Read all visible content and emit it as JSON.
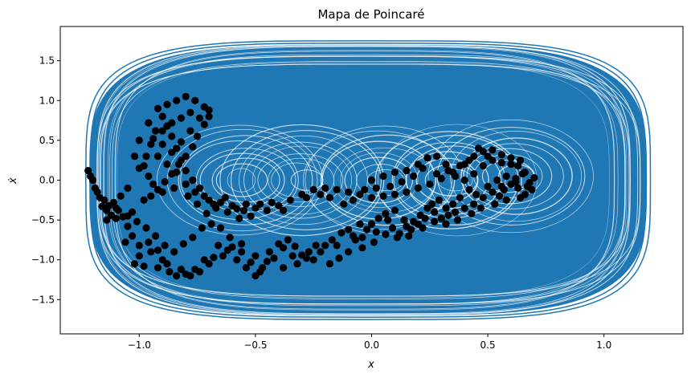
{
  "chart_data": {
    "type": "scatter",
    "title": "Mapa de Poincaré",
    "xlabel": "x",
    "ylabel": "ẋ",
    "xlim": [
      -1.34,
      1.34
    ],
    "ylim": [
      -1.93,
      1.93
    ],
    "xticks": [
      -1.0,
      -0.5,
      0.0,
      0.5,
      1.0
    ],
    "xtick_labels": [
      "−1.0",
      "−0.5",
      "0.0",
      "0.5",
      "1.0"
    ],
    "yticks": [
      1.5,
      1.0,
      0.5,
      0.0,
      -0.5,
      -1.0,
      -1.5
    ],
    "ytick_labels": [
      "1.5",
      "1.0",
      "0.5",
      "0.0",
      "−0.5",
      "−1.0",
      "−1.5"
    ],
    "grid": false,
    "colors": {
      "trajectory": "#1f77b4",
      "poincare_points": "#000000",
      "background": "#ffffff"
    },
    "series": [
      {
        "kind": "line",
        "description_values": "dense phase-space trajectory filling an oval region",
        "x_range": [
          -1.25,
          1.22
        ],
        "y_range": [
          -1.75,
          1.75
        ]
      },
      {
        "kind": "scatter",
        "points": [
          [
            -1.22,
            0.12
          ],
          [
            -1.21,
            0.05
          ],
          [
            -1.2,
            0.0
          ],
          [
            -1.19,
            -0.1
          ],
          [
            -1.17,
            -0.22
          ],
          [
            -1.16,
            -0.33
          ],
          [
            -1.14,
            -0.38
          ],
          [
            -1.12,
            -0.44
          ],
          [
            -1.1,
            -0.48
          ],
          [
            -1.07,
            -0.46
          ],
          [
            -1.05,
            -0.58
          ],
          [
            -1.03,
            -0.7
          ],
          [
            -1.02,
            -1.05
          ],
          [
            -1.0,
            -0.82
          ],
          [
            -0.98,
            -1.08
          ],
          [
            -0.95,
            -0.9
          ],
          [
            -0.92,
            -0.88
          ],
          [
            -0.9,
            -1.0
          ],
          [
            -0.87,
            -1.15
          ],
          [
            -0.84,
            -1.2
          ],
          [
            -0.8,
            -1.18
          ],
          [
            -0.76,
            -1.12
          ],
          [
            -0.72,
            -1.0
          ],
          [
            -0.68,
            -0.97
          ],
          [
            -0.64,
            -0.95
          ],
          [
            -0.6,
            -0.84
          ],
          [
            -0.56,
            -0.9
          ],
          [
            -0.52,
            -1.03
          ],
          [
            -0.5,
            -1.2
          ],
          [
            -0.47,
            -1.1
          ],
          [
            -0.44,
            -0.9
          ],
          [
            -0.4,
            -0.8
          ],
          [
            -0.36,
            -0.75
          ],
          [
            -0.33,
            -0.83
          ],
          [
            -0.3,
            -0.94
          ],
          [
            -0.27,
            -0.9
          ],
          [
            -0.24,
            -0.82
          ],
          [
            -0.2,
            -0.82
          ],
          [
            -0.17,
            -0.75
          ],
          [
            -0.13,
            -0.66
          ],
          [
            -0.1,
            -0.62
          ],
          [
            -0.07,
            -0.75
          ],
          [
            -0.04,
            -0.72
          ],
          [
            -0.02,
            -0.62
          ],
          [
            0.0,
            -0.55
          ],
          [
            0.03,
            -0.48
          ],
          [
            0.06,
            -0.42
          ],
          [
            0.09,
            -0.6
          ],
          [
            0.12,
            -0.67
          ],
          [
            0.15,
            -0.58
          ],
          [
            0.18,
            -0.52
          ],
          [
            0.21,
            -0.44
          ],
          [
            0.24,
            -0.35
          ],
          [
            0.27,
            -0.4
          ],
          [
            0.3,
            -0.48
          ],
          [
            0.33,
            -0.44
          ],
          [
            0.36,
            -0.4
          ],
          [
            0.4,
            -0.35
          ],
          [
            0.44,
            -0.3
          ],
          [
            0.48,
            -0.22
          ],
          [
            0.52,
            -0.15
          ],
          [
            0.56,
            -0.08
          ],
          [
            0.6,
            -0.05
          ],
          [
            0.63,
            -0.1
          ],
          [
            0.66,
            -0.18
          ],
          [
            0.68,
            -0.03
          ],
          [
            0.7,
            0.03
          ],
          [
            0.66,
            0.1
          ],
          [
            0.63,
            0.18
          ],
          [
            0.6,
            0.28
          ],
          [
            0.56,
            0.32
          ],
          [
            0.52,
            0.38
          ],
          [
            0.48,
            0.36
          ],
          [
            0.44,
            0.3
          ],
          [
            0.4,
            0.2
          ],
          [
            0.35,
            0.1
          ],
          [
            0.3,
            0.02
          ],
          [
            0.25,
            -0.05
          ],
          [
            0.2,
            -0.1
          ],
          [
            0.15,
            -0.15
          ],
          [
            0.1,
            -0.18
          ],
          [
            0.05,
            -0.2
          ],
          [
            0.0,
            -0.22
          ],
          [
            -0.05,
            -0.18
          ],
          [
            -0.1,
            -0.15
          ],
          [
            -0.15,
            -0.12
          ],
          [
            -0.2,
            -0.1
          ],
          [
            -0.25,
            -0.12
          ],
          [
            -0.3,
            -0.18
          ],
          [
            -0.35,
            -0.25
          ],
          [
            -0.4,
            -0.32
          ],
          [
            -0.45,
            -0.38
          ],
          [
            -0.5,
            -0.35
          ],
          [
            -0.55,
            -0.38
          ],
          [
            -0.6,
            -0.32
          ],
          [
            -0.65,
            -0.28
          ],
          [
            -0.7,
            -0.25
          ],
          [
            -0.74,
            -0.1
          ],
          [
            -0.77,
            0.0
          ],
          [
            -0.8,
            0.12
          ],
          [
            -0.82,
            0.25
          ],
          [
            -0.84,
            0.4
          ],
          [
            -0.86,
            0.55
          ],
          [
            -0.88,
            0.68
          ],
          [
            -0.9,
            0.8
          ],
          [
            -0.92,
            0.9
          ],
          [
            -0.88,
            0.95
          ],
          [
            -0.84,
            1.0
          ],
          [
            -0.8,
            1.05
          ],
          [
            -0.76,
            1.0
          ],
          [
            -0.72,
            0.92
          ],
          [
            -0.7,
            0.8
          ],
          [
            -0.72,
            0.7
          ],
          [
            -0.75,
            0.55
          ],
          [
            -0.77,
            0.42
          ],
          [
            -0.8,
            0.3
          ],
          [
            -0.83,
            0.2
          ],
          [
            -0.86,
            0.08
          ],
          [
            -0.89,
            -0.02
          ],
          [
            -0.92,
            -0.12
          ],
          [
            -0.95,
            -0.2
          ],
          [
            -0.98,
            -0.25
          ],
          [
            -1.0,
            0.15
          ],
          [
            -0.97,
            0.3
          ],
          [
            -0.95,
            0.45
          ],
          [
            -0.93,
            0.62
          ],
          [
            -0.96,
            0.72
          ],
          [
            -1.0,
            0.5
          ],
          [
            -1.02,
            0.3
          ],
          [
            -0.92,
            0.3
          ],
          [
            -0.88,
            0.2
          ],
          [
            -0.84,
            0.1
          ],
          [
            -0.8,
            -0.05
          ],
          [
            -0.76,
            -0.15
          ],
          [
            -0.72,
            -0.2
          ],
          [
            -0.68,
            -0.3
          ],
          [
            -0.62,
            -0.4
          ],
          [
            -0.58,
            -0.36
          ],
          [
            -0.54,
            -0.3
          ],
          [
            -1.15,
            -0.25
          ],
          [
            -1.13,
            -0.32
          ],
          [
            -1.11,
            -0.28
          ],
          [
            -1.18,
            -0.15
          ],
          [
            -1.06,
            -0.78
          ],
          [
            -1.0,
            -0.95
          ],
          [
            -0.96,
            -0.78
          ],
          [
            -0.92,
            -1.1
          ],
          [
            -0.88,
            -1.05
          ],
          [
            -0.82,
            -1.12
          ],
          [
            -0.78,
            -1.2
          ],
          [
            -0.74,
            -1.15
          ],
          [
            -0.7,
            -1.05
          ],
          [
            -0.66,
            -0.82
          ],
          [
            -0.62,
            -0.88
          ],
          [
            -0.58,
            -1.0
          ],
          [
            -0.54,
            -1.1
          ],
          [
            -0.48,
            -1.15
          ],
          [
            -0.42,
            -0.98
          ],
          [
            -0.38,
            -0.85
          ],
          [
            -0.34,
            -0.95
          ],
          [
            -0.28,
            -0.98
          ],
          [
            -0.22,
            -0.9
          ],
          [
            -0.15,
            -0.82
          ],
          [
            -0.08,
            -0.7
          ],
          [
            -0.05,
            -0.55
          ],
          [
            0.02,
            -0.65
          ],
          [
            0.07,
            -0.5
          ],
          [
            0.1,
            -0.38
          ],
          [
            0.14,
            -0.5
          ],
          [
            0.17,
            -0.62
          ],
          [
            0.2,
            -0.55
          ],
          [
            0.23,
            -0.48
          ],
          [
            0.26,
            -0.3
          ],
          [
            0.29,
            -0.25
          ],
          [
            0.32,
            -0.35
          ],
          [
            0.35,
            -0.3
          ],
          [
            0.38,
            -0.22
          ],
          [
            0.42,
            -0.12
          ],
          [
            0.45,
            -0.18
          ],
          [
            0.5,
            -0.08
          ],
          [
            0.54,
            0.0
          ],
          [
            0.58,
            0.05
          ],
          [
            0.62,
            0.02
          ],
          [
            0.65,
            0.08
          ],
          [
            0.67,
            -0.08
          ],
          [
            0.69,
            -0.12
          ],
          [
            0.64,
            -0.22
          ],
          [
            0.58,
            -0.25
          ],
          [
            0.55,
            -0.2
          ],
          [
            0.5,
            0.3
          ],
          [
            0.46,
            0.4
          ],
          [
            0.42,
            0.25
          ],
          [
            0.38,
            0.18
          ],
          [
            0.33,
            0.12
          ],
          [
            0.28,
            0.08
          ],
          [
            0.22,
            0.15
          ],
          [
            0.18,
            0.05
          ],
          [
            0.13,
            -0.02
          ],
          [
            0.08,
            -0.08
          ],
          [
            0.02,
            -0.1
          ],
          [
            -0.03,
            -0.12
          ],
          [
            -0.08,
            -0.25
          ],
          [
            -0.12,
            -0.3
          ],
          [
            -0.18,
            -0.22
          ],
          [
            -0.22,
            -0.18
          ],
          [
            -0.28,
            -0.22
          ],
          [
            -0.38,
            -0.38
          ],
          [
            -0.43,
            -0.28
          ],
          [
            -0.48,
            -0.3
          ],
          [
            -0.52,
            -0.45
          ],
          [
            -0.57,
            -0.48
          ],
          [
            -0.63,
            -0.22
          ],
          [
            -0.67,
            -0.35
          ],
          [
            -0.71,
            -0.42
          ],
          [
            -0.75,
            -0.3
          ],
          [
            -0.79,
            -0.2
          ],
          [
            -0.85,
            -0.1
          ],
          [
            -0.9,
            -0.15
          ],
          [
            -0.94,
            -0.05
          ],
          [
            -0.96,
            0.05
          ],
          [
            -0.98,
            0.18
          ],
          [
            -0.9,
            0.45
          ],
          [
            -0.86,
            0.35
          ],
          [
            -0.82,
            0.48
          ],
          [
            -0.78,
            0.62
          ],
          [
            -0.74,
            0.78
          ],
          [
            -0.7,
            0.88
          ],
          [
            -0.78,
            0.85
          ],
          [
            -0.82,
            0.78
          ],
          [
            -0.86,
            0.72
          ],
          [
            -0.9,
            0.62
          ],
          [
            -0.94,
            0.52
          ],
          [
            -1.05,
            -0.1
          ],
          [
            -1.08,
            -0.2
          ],
          [
            -1.1,
            -0.35
          ],
          [
            -1.14,
            -0.5
          ],
          [
            -1.03,
            -0.4
          ],
          [
            0.0,
            0.0
          ],
          [
            0.05,
            0.05
          ],
          [
            0.1,
            0.1
          ],
          [
            0.15,
            0.12
          ],
          [
            0.2,
            0.2
          ],
          [
            0.24,
            0.28
          ],
          [
            0.28,
            0.3
          ],
          [
            0.32,
            0.2
          ],
          [
            0.36,
            0.05
          ],
          [
            0.4,
            0.0
          ],
          [
            0.44,
            0.08
          ],
          [
            0.48,
            0.18
          ],
          [
            0.52,
            0.25
          ],
          [
            0.56,
            0.22
          ],
          [
            0.6,
            0.2
          ],
          [
            0.64,
            0.25
          ],
          [
            0.62,
            -0.02
          ],
          [
            0.57,
            -0.12
          ],
          [
            0.53,
            -0.3
          ],
          [
            0.47,
            -0.35
          ],
          [
            0.43,
            -0.42
          ],
          [
            0.37,
            -0.5
          ],
          [
            0.32,
            -0.55
          ],
          [
            0.27,
            -0.52
          ],
          [
            0.22,
            -0.6
          ],
          [
            0.16,
            -0.7
          ],
          [
            0.11,
            -0.72
          ],
          [
            0.06,
            -0.68
          ],
          [
            0.01,
            -0.78
          ],
          [
            -0.04,
            -0.85
          ],
          [
            -0.1,
            -0.9
          ],
          [
            -0.14,
            -0.98
          ],
          [
            -0.18,
            -1.05
          ],
          [
            -0.25,
            -1.0
          ],
          [
            -0.32,
            -1.05
          ],
          [
            -0.38,
            -1.1
          ],
          [
            -0.45,
            -1.02
          ],
          [
            -0.5,
            -0.95
          ],
          [
            -0.56,
            -0.8
          ],
          [
            -0.61,
            -0.72
          ],
          [
            -0.65,
            -0.6
          ],
          [
            -0.69,
            -0.55
          ],
          [
            -0.73,
            -0.6
          ],
          [
            -0.77,
            -0.72
          ],
          [
            -0.81,
            -0.8
          ],
          [
            -0.85,
            -0.9
          ],
          [
            -0.89,
            -0.82
          ],
          [
            -0.93,
            -0.7
          ],
          [
            -0.97,
            -0.6
          ],
          [
            -1.01,
            -0.52
          ],
          [
            -1.05,
            -0.45
          ],
          [
            -1.09,
            -0.38
          ]
        ]
      }
    ]
  }
}
